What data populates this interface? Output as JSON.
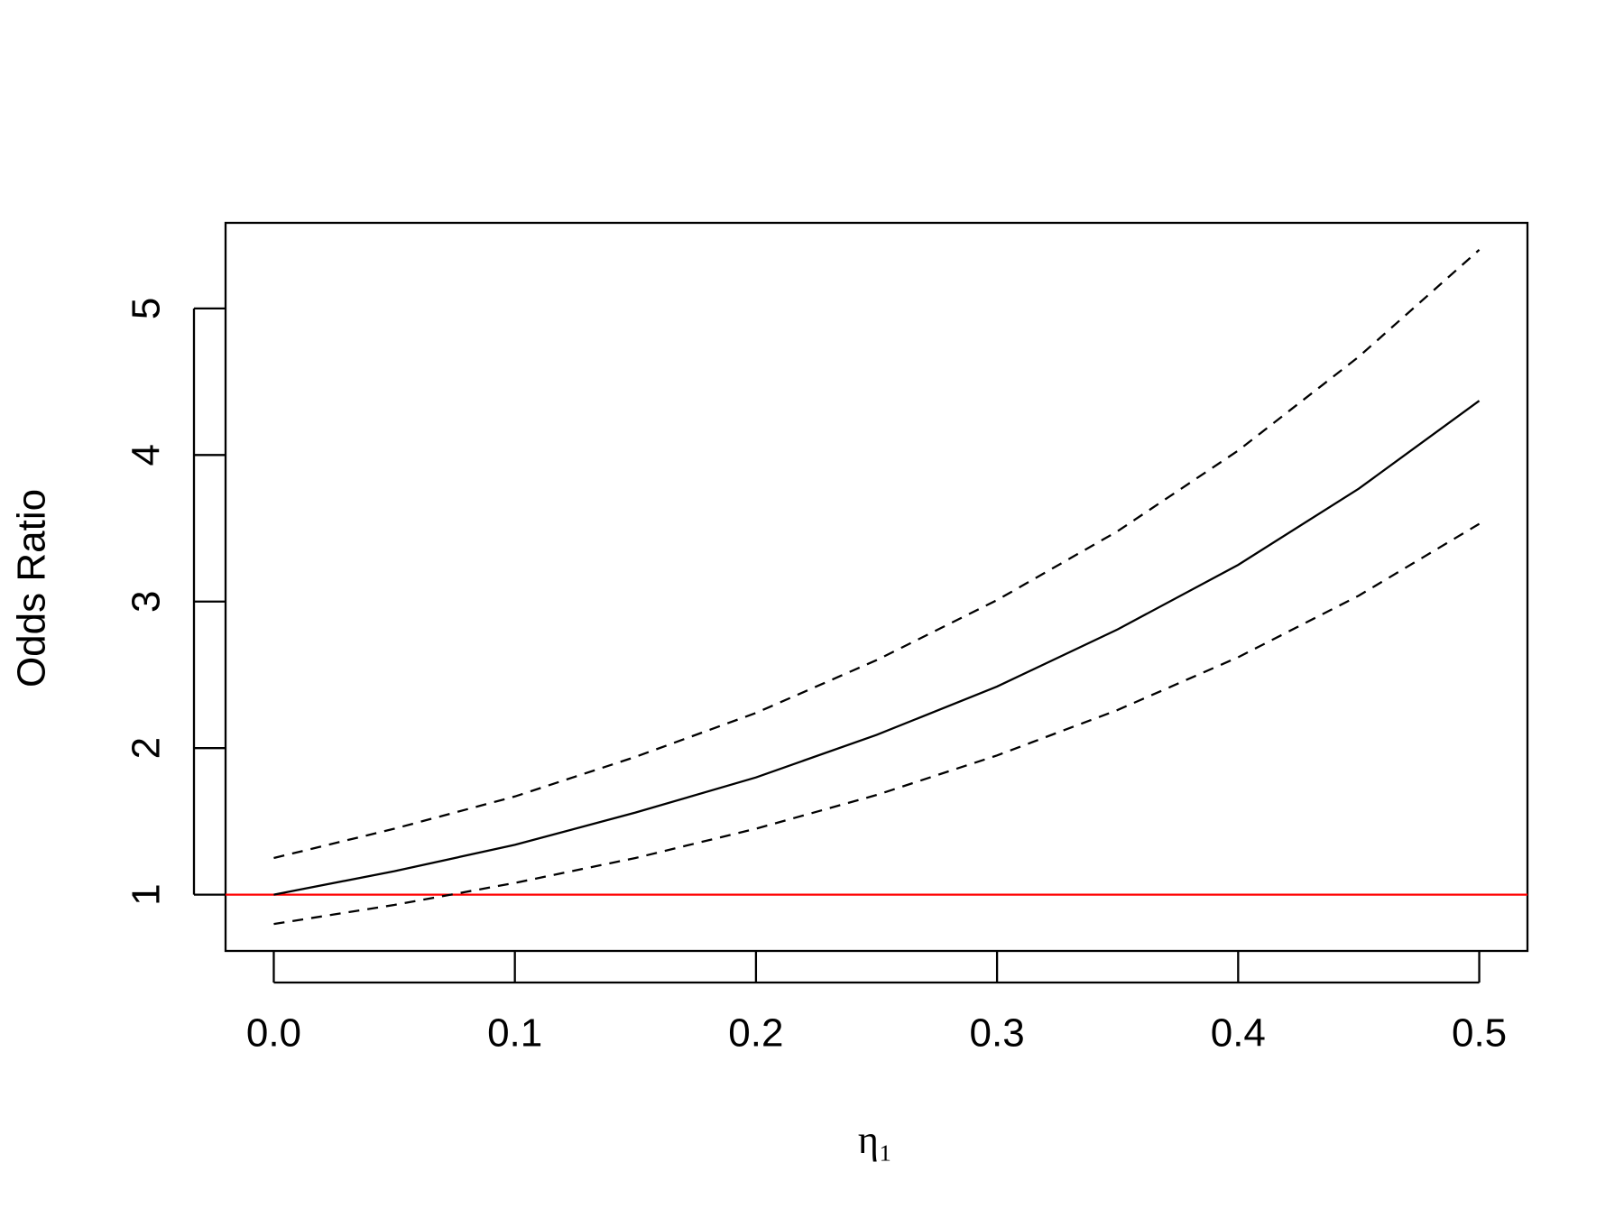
{
  "chart_data": {
    "type": "line",
    "xlabel": "η₁",
    "ylabel": "Odds Ratio",
    "x": [
      0,
      0.05,
      0.1,
      0.15,
      0.2,
      0.25,
      0.3,
      0.35,
      0.4,
      0.45,
      0.5
    ],
    "series": [
      {
        "color": "#000000",
        "dashed": false,
        "values": [
          1,
          1.16,
          1.34,
          1.56,
          1.8,
          2.09,
          2.42,
          2.81,
          3.25,
          3.77,
          4.37
        ]
      },
      {
        "color": "#000000",
        "dashed": true,
        "values": [
          1.25,
          1.45,
          1.67,
          1.94,
          2.24,
          2.6,
          3.01,
          3.48,
          4.03,
          4.67,
          5.4
        ]
      },
      {
        "color": "#000000",
        "dashed": true,
        "values": [
          0.8,
          0.93,
          1.08,
          1.25,
          1.45,
          1.68,
          1.95,
          2.26,
          2.62,
          3.04,
          3.53
        ]
      }
    ],
    "hline": {
      "value": 1,
      "color": "#ff0000"
    },
    "xlim": [
      -0.02,
      0.52
    ],
    "ylim": [
      0.616,
      5.584
    ],
    "xticks": [
      {
        "value": 0,
        "label": "0.0"
      },
      0.1,
      0.2,
      0.3,
      0.4,
      0.5
    ],
    "yticks": [
      1,
      2,
      3,
      4,
      5
    ],
    "grid": false
  }
}
